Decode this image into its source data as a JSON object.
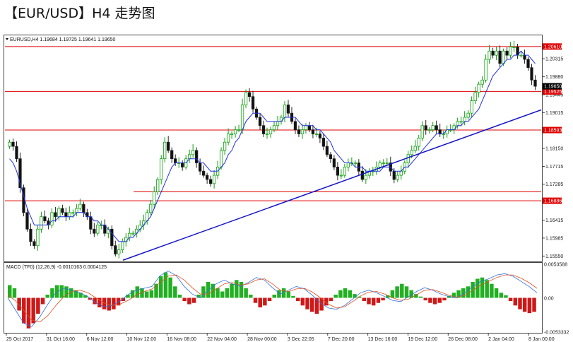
{
  "title": "【EUR/USD】H4 走势图",
  "chart_data": {
    "type": "candlestick",
    "symbol_header": "EURUSD,H4  1.19684  1.19725  1.19641  1.19650",
    "y_ticks": [
      "1.20315",
      "1.19880",
      "1.19445",
      "1.19015",
      "1.18150",
      "1.17715",
      "1.17285",
      "1.16415",
      "1.15985",
      "1.15550"
    ],
    "x_ticks": [
      "25 Oct 2017",
      "31 Oct 16:00",
      "6 Nov 12:00",
      "10 Nov 12:00",
      "16 Nov 08:00",
      "22 Nov 04:00",
      "28 Nov 00:00",
      "3 Dec 22:05",
      "7 Dec 20:00",
      "13 Dec 16:00",
      "19 Dec 12:00",
      "26 Dec 08:00",
      "2 Jan 04:00",
      "8 Jan 00:00"
    ],
    "current_price": "1.19650",
    "ylim": [
      1.1542,
      1.2088
    ],
    "horizontal_levels": [
      {
        "label": "1.20610",
        "value": 1.2061,
        "color": "#e00000"
      },
      {
        "label": "1.19525",
        "value": 1.19525,
        "color": "#e00000"
      },
      {
        "label": "1.18593",
        "value": 1.18593,
        "color": "#e00000"
      },
      {
        "label": "1.16886",
        "value": 1.16886,
        "color": "#e00000"
      }
    ],
    "support_line": {
      "value": 1.171,
      "color": "#e00000"
    },
    "trendline": {
      "from": [
        0.22,
        1.1545
      ],
      "to": [
        1.0,
        1.1908
      ],
      "color": "#1414c8"
    },
    "close_series": [
      1.183,
      1.182,
      1.179,
      1.172,
      1.166,
      1.162,
      1.159,
      1.158,
      1.162,
      1.165,
      1.164,
      1.163,
      1.166,
      1.165,
      1.167,
      1.166,
      1.165,
      1.166,
      1.166,
      1.167,
      1.168,
      1.166,
      1.165,
      1.162,
      1.161,
      1.163,
      1.163,
      1.161,
      1.162,
      1.158,
      1.156,
      1.157,
      1.159,
      1.16,
      1.161,
      1.161,
      1.162,
      1.163,
      1.164,
      1.166,
      1.168,
      1.171,
      1.174,
      1.179,
      1.183,
      1.181,
      1.179,
      1.178,
      1.178,
      1.177,
      1.179,
      1.18,
      1.181,
      1.178,
      1.176,
      1.175,
      1.174,
      1.173,
      1.175,
      1.177,
      1.181,
      1.183,
      1.185,
      1.185,
      1.186,
      1.186,
      1.192,
      1.195,
      1.194,
      1.191,
      1.189,
      1.187,
      1.185,
      1.185,
      1.186,
      1.187,
      1.188,
      1.189,
      1.192,
      1.19,
      1.188,
      1.186,
      1.185,
      1.186,
      1.187,
      1.186,
      1.185,
      1.185,
      1.184,
      1.182,
      1.18,
      1.179,
      1.177,
      1.175,
      1.175,
      1.177,
      1.178,
      1.178,
      1.178,
      1.176,
      1.174,
      1.175,
      1.176,
      1.176,
      1.177,
      1.178,
      1.178,
      1.178,
      1.176,
      1.174,
      1.175,
      1.176,
      1.178,
      1.18,
      1.181,
      1.182,
      1.184,
      1.187,
      1.186,
      1.186,
      1.187,
      1.186,
      1.185,
      1.185,
      1.186,
      1.186,
      1.187,
      1.188,
      1.188,
      1.189,
      1.19,
      1.193,
      1.195,
      1.197,
      1.198,
      1.203,
      1.205,
      1.204,
      1.205,
      1.202,
      1.205,
      1.204,
      1.206,
      1.206,
      1.204,
      1.204,
      1.203,
      1.201,
      1.198,
      1.1965
    ],
    "sma_series": [
      1.179,
      1.178,
      1.176,
      1.173,
      1.17,
      1.167,
      1.165,
      1.163,
      1.163,
      1.163,
      1.163,
      1.163,
      1.164,
      1.164,
      1.165,
      1.165,
      1.165,
      1.165,
      1.165,
      1.166,
      1.166,
      1.166,
      1.165,
      1.165,
      1.164,
      1.164,
      1.163,
      1.163,
      1.162,
      1.161,
      1.16,
      1.159,
      1.159,
      1.159,
      1.16,
      1.16,
      1.161,
      1.162,
      1.163,
      1.164,
      1.165,
      1.167,
      1.169,
      1.171,
      1.173,
      1.175,
      1.177,
      1.178,
      1.178,
      1.178,
      1.178,
      1.179,
      1.179,
      1.179,
      1.178,
      1.178,
      1.177,
      1.176,
      1.176,
      1.176,
      1.177,
      1.178,
      1.18,
      1.181,
      1.183,
      1.184,
      1.186,
      1.188,
      1.189,
      1.19,
      1.19,
      1.19,
      1.189,
      1.188,
      1.188,
      1.188,
      1.188,
      1.188,
      1.189,
      1.189,
      1.189,
      1.189,
      1.188,
      1.187,
      1.187,
      1.187,
      1.187,
      1.186,
      1.186,
      1.185,
      1.184,
      1.183,
      1.181,
      1.18,
      1.179,
      1.178,
      1.178,
      1.178,
      1.177,
      1.177,
      1.177,
      1.176,
      1.176,
      1.176,
      1.176,
      1.176,
      1.177,
      1.177,
      1.177,
      1.176,
      1.176,
      1.176,
      1.177,
      1.177,
      1.178,
      1.179,
      1.18,
      1.181,
      1.182,
      1.183,
      1.184,
      1.185,
      1.185,
      1.185,
      1.186,
      1.186,
      1.186,
      1.187,
      1.187,
      1.188,
      1.188,
      1.189,
      1.19,
      1.191,
      1.193,
      1.195,
      1.197,
      1.199,
      1.2,
      1.201,
      1.202,
      1.203,
      1.203,
      1.204,
      1.204,
      1.205,
      1.204,
      1.204,
      1.203,
      1.202
    ],
    "macd": {
      "header": "MACD (TF0) (12,26,9) -0.0010163 0.0004125",
      "y_ticks": [
        "0.0053588",
        "0.00",
        "-0.0053332"
      ],
      "ylim": [
        -0.0055,
        0.0055
      ],
      "histogram": [
        0.002,
        0.0015,
        -0.002,
        -0.004,
        -0.0048,
        -0.004,
        -0.0025,
        -0.001,
        0.0005,
        0.0015,
        0.002,
        0.002,
        0.0018,
        0.0015,
        0.0012,
        0.0008,
        0.0004,
        -0.0003,
        -0.001,
        -0.0015,
        -0.0018,
        -0.002,
        -0.0018,
        -0.0012,
        -0.0005,
        0.0005,
        0.0012,
        0.0018,
        0.0015,
        0.001,
        0.0012,
        0.0022,
        0.0034,
        0.004,
        0.0032,
        0.0018,
        0.0005,
        -0.0005,
        -0.001,
        -0.0008,
        0.0005,
        0.0018,
        0.0025,
        0.0022,
        0.0015,
        0.001,
        0.0015,
        0.0022,
        0.0028,
        0.0025,
        0.0015,
        0.0005,
        -0.0008,
        -0.0015,
        -0.0012,
        -0.0005,
        0.0005,
        0.0012,
        0.0015,
        0.001,
        0.0003,
        -0.0005,
        -0.0012,
        -0.0018,
        -0.0022,
        -0.0025,
        -0.002,
        -0.0012,
        -0.0005,
        0.0005,
        0.0012,
        0.0015,
        0.0012,
        0.0006,
        0.0002,
        -0.0005,
        -0.001,
        -0.0012,
        -0.0008,
        -0.0004,
        0.0004,
        0.0012,
        0.0018,
        0.0022,
        0.0018,
        0.0012,
        0.0006,
        0.0002,
        -0.0004,
        -0.0008,
        -0.001,
        -0.0008,
        -0.0004,
        0.0003,
        0.0008,
        0.0012,
        0.0015,
        0.0018,
        0.0025,
        0.003,
        0.0032,
        0.0028,
        0.0022,
        0.0015,
        0.0008,
        0.0004,
        -0.0005,
        -0.0012,
        -0.0018,
        -0.0022,
        -0.0024,
        -0.0022
      ],
      "line_a": [
        0.0,
        -0.002,
        -0.004,
        -0.0045,
        -0.003,
        -0.001,
        0.0008,
        0.0015,
        0.0012,
        0.0008,
        0.0002,
        -0.0008,
        -0.0014,
        -0.0012,
        -0.0005,
        0.0005,
        0.0012,
        0.0015,
        0.0018,
        0.0035,
        0.0042,
        0.0035,
        0.0018,
        0.0006,
        0.0,
        0.0012,
        0.0022,
        0.0028,
        0.0022,
        0.0018,
        0.0024,
        0.0032,
        0.0028,
        0.0016,
        0.0006,
        0.0012,
        0.0018,
        0.0014,
        0.0004,
        -0.0008,
        -0.0016,
        -0.0018,
        -0.0012,
        -0.0002,
        0.0008,
        0.0012,
        0.0008,
        0.0002,
        -0.0004,
        -0.0006,
        0.0002,
        0.001,
        0.0016,
        0.0012,
        0.0006,
        0.0002,
        0.0,
        0.0008,
        0.0018,
        0.0026,
        0.003,
        0.0036,
        0.0038,
        0.0034,
        0.0026,
        0.0018,
        0.0008
      ],
      "line_b": [
        0.0005,
        -0.0005,
        -0.002,
        -0.0035,
        -0.0038,
        -0.0028,
        -0.0012,
        0.0002,
        0.001,
        0.0012,
        0.0008,
        0.0,
        -0.0008,
        -0.0012,
        -0.001,
        -0.0004,
        0.0004,
        0.001,
        0.0014,
        0.0024,
        0.0034,
        0.0036,
        0.0028,
        0.0016,
        0.0006,
        0.0006,
        0.0014,
        0.0022,
        0.0024,
        0.002,
        0.0022,
        0.0028,
        0.003,
        0.0022,
        0.0012,
        0.001,
        0.0014,
        0.0015,
        0.0009,
        0.0,
        -0.001,
        -0.0016,
        -0.0014,
        -0.0006,
        0.0003,
        0.0009,
        0.001,
        0.0006,
        0.0,
        -0.0004,
        -0.0002,
        0.0005,
        0.0012,
        0.0013,
        0.0009,
        0.0004,
        0.0001,
        0.0004,
        0.0012,
        0.002,
        0.0026,
        0.0032,
        0.0036,
        0.0036,
        0.0031,
        0.0024,
        0.0015
      ]
    }
  }
}
